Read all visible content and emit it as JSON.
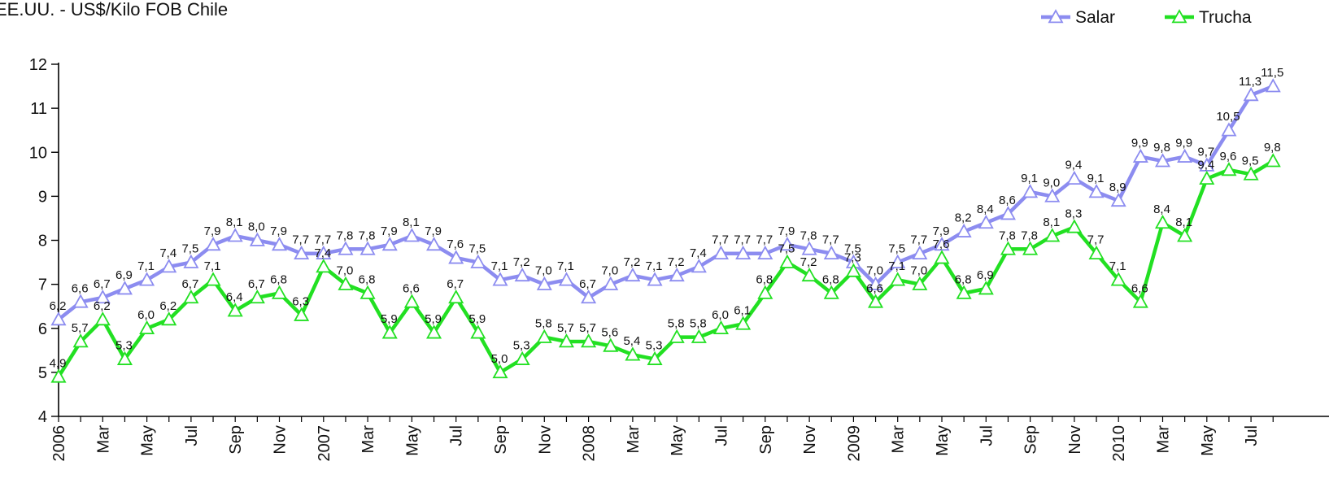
{
  "title": "EE.UU. - US$/Kilo FOB Chile",
  "chart_data": {
    "type": "line",
    "title": "EE.UU. - US$/Kilo FOB Chile",
    "xlabel": "",
    "ylabel": "",
    "ylim": [
      4,
      12
    ],
    "yticks": [
      "4",
      "5",
      "6",
      "7",
      "8",
      "9",
      "10",
      "11",
      "12"
    ],
    "grid": false,
    "legend_position": "top-right",
    "x": [
      "2006-01",
      "2006-02",
      "2006-03",
      "2006-04",
      "2006-05",
      "2006-06",
      "2006-07",
      "2006-08",
      "2006-09",
      "2006-10",
      "2006-11",
      "2006-12",
      "2007-01",
      "2007-02",
      "2007-03",
      "2007-04",
      "2007-05",
      "2007-06",
      "2007-07",
      "2007-08",
      "2007-09",
      "2007-10",
      "2007-11",
      "2007-12",
      "2008-01",
      "2008-02",
      "2008-03",
      "2008-04",
      "2008-05",
      "2008-06",
      "2008-07",
      "2008-08",
      "2008-09",
      "2008-10",
      "2008-11",
      "2008-12",
      "2009-01",
      "2009-02",
      "2009-03",
      "2009-04",
      "2009-05",
      "2009-06",
      "2009-07",
      "2009-08",
      "2009-09",
      "2009-10",
      "2009-11",
      "2009-12",
      "2010-01",
      "2010-02",
      "2010-03",
      "2010-04",
      "2010-05",
      "2010-06",
      "2010-07",
      "2010-08"
    ],
    "xtick_labels": [
      "2006",
      "Mar",
      "May",
      "Jul",
      "Sep",
      "Nov",
      "2007",
      "Mar",
      "May",
      "Jul",
      "Sep",
      "Nov",
      "2008",
      "Mar",
      "May",
      "Jul",
      "Sep",
      "Nov",
      "2009",
      "Mar",
      "May",
      "Jul",
      "Sep",
      "Nov",
      "2010",
      "Mar",
      "May",
      "Jul"
    ],
    "series": [
      {
        "name": "Salar",
        "color": "#8c8cf0",
        "values": [
          6.2,
          6.6,
          6.7,
          6.9,
          7.1,
          7.4,
          7.5,
          7.9,
          8.1,
          8.0,
          7.9,
          7.7,
          7.7,
          7.8,
          7.8,
          7.9,
          8.1,
          7.9,
          7.6,
          7.5,
          7.1,
          7.2,
          7.0,
          7.1,
          6.7,
          7.0,
          7.2,
          7.1,
          7.2,
          7.4,
          7.7,
          7.7,
          7.7,
          7.9,
          7.8,
          7.7,
          7.5,
          7.0,
          7.5,
          7.7,
          7.9,
          8.2,
          8.4,
          8.6,
          9.1,
          9.0,
          9.4,
          9.1,
          8.9,
          9.9,
          9.8,
          9.9,
          9.7,
          10.5,
          11.3,
          11.5
        ],
        "labels": [
          "6,2",
          "6,6",
          "6,7",
          "6,9",
          "7,1",
          "7,4",
          "7,5",
          "7,9",
          "8,1",
          "8,0",
          "7,9",
          "7,7",
          "7,7",
          "7,8",
          "7,8",
          "7,9",
          "8,1",
          "7,9",
          "7,6",
          "7,5",
          "7,1",
          "7,2",
          "7,0",
          "7,1",
          "6,7",
          "7,0",
          "7,2",
          "7,1",
          "7,2",
          "7,4",
          "7,7",
          "7,7",
          "7,7",
          "7,9",
          "7,8",
          "7,7",
          "7,5",
          "7,0",
          "7,5",
          "7,7",
          "7,9",
          "8,2",
          "8,4",
          "8,6",
          "9,1",
          "9,0",
          "9,4",
          "9,1",
          "8,9",
          "9,9",
          "9,8",
          "9,9",
          "9,7",
          "10,5",
          "11,3",
          "11,5"
        ]
      },
      {
        "name": "Trucha",
        "color": "#22e022",
        "values": [
          4.9,
          5.7,
          6.2,
          5.3,
          6.0,
          6.2,
          6.7,
          7.1,
          6.4,
          6.7,
          6.8,
          6.3,
          7.4,
          7.0,
          6.8,
          5.9,
          6.6,
          5.9,
          6.7,
          5.9,
          5.0,
          5.3,
          5.8,
          5.7,
          5.7,
          5.6,
          5.4,
          5.3,
          5.8,
          5.8,
          6.0,
          6.1,
          6.8,
          7.5,
          7.2,
          6.8,
          7.3,
          6.6,
          7.1,
          7.0,
          7.6,
          6.8,
          6.9,
          7.8,
          7.8,
          8.1,
          8.3,
          7.7,
          7.1,
          6.6,
          8.4,
          8.1,
          9.4,
          9.6,
          9.5,
          9.8
        ],
        "labels": [
          "4,9",
          "5,7",
          "6,2",
          "5,3",
          "6,0",
          "6,2",
          "6,7",
          "7,1",
          "6,4",
          "6,7",
          "6,8",
          "6,3",
          "7,4",
          "7,0",
          "6,8",
          "5,9",
          "6,6",
          "5,9",
          "6,7",
          "5,9",
          "5,0",
          "5,3",
          "5,8",
          "5,7",
          "5,7",
          "5,6",
          "5,4",
          "5,3",
          "5,8",
          "5,8",
          "6,0",
          "6,1",
          "6,8",
          "7,5",
          "7,2",
          "6,8",
          "7,3",
          "6,6",
          "7,1",
          "7,0",
          "7,6",
          "6,8",
          "6,9",
          "7,8",
          "7,8",
          "8,1",
          "8,3",
          "7,7",
          "7,1",
          "6,6",
          "8,4",
          "8,1",
          "9,4",
          "9,6",
          "9,5",
          "9,8"
        ]
      }
    ]
  }
}
